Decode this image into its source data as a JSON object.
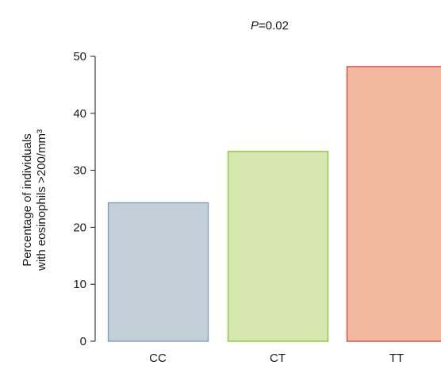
{
  "chart_data": {
    "type": "bar",
    "annotation": {
      "prefix": "P",
      "suffix": "=0.02"
    },
    "ylabel_lines": [
      "Percentage of individuals",
      "with eosinophils >200/mm³"
    ],
    "xlabel": "",
    "ylim": [
      0,
      50
    ],
    "yticks": [
      "0",
      "10",
      "20",
      "30",
      "40",
      "50"
    ],
    "categories": [
      "CC",
      "CT",
      "TT"
    ],
    "values": [
      24.3,
      33.3,
      48.2
    ],
    "bar_colors": [
      {
        "fill": "#c4d0d8",
        "stroke": "#7f9fbd"
      },
      {
        "fill": "#d6e7b0",
        "stroke": "#8cc63f"
      },
      {
        "fill": "#f2b8a0",
        "stroke": "#e0454a"
      }
    ],
    "grid": false,
    "legend": "none"
  }
}
